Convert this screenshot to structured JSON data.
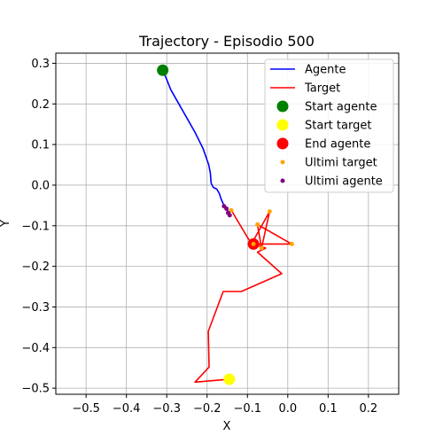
{
  "chart_data": {
    "type": "line",
    "title": "Trajectory - Episodio 500",
    "xlabel": "X",
    "ylabel": "Y",
    "xlim": [
      -0.575,
      0.275
    ],
    "ylim": [
      -0.515,
      0.325
    ],
    "xticks": [
      -0.5,
      -0.4,
      -0.3,
      -0.2,
      -0.1,
      0.0,
      0.1,
      0.2
    ],
    "xtick_labels": [
      "−0.5",
      "−0.4",
      "−0.3",
      "−0.2",
      "−0.1",
      "0.0",
      "0.1",
      "0.2"
    ],
    "yticks": [
      -0.5,
      -0.4,
      -0.3,
      -0.2,
      -0.1,
      0.0,
      0.1,
      0.2,
      0.3
    ],
    "ytick_labels": [
      "−0.5",
      "−0.4",
      "−0.3",
      "−0.2",
      "−0.1",
      "0.0",
      "0.1",
      "0.2",
      "0.3"
    ],
    "grid": true,
    "legend_position": "top-right",
    "series": [
      {
        "name": "Agente",
        "kind": "line",
        "color": "#0000ff",
        "x": [
          -0.31,
          -0.3,
          -0.29,
          -0.27,
          -0.25,
          -0.23,
          -0.21,
          -0.196,
          -0.192,
          -0.19,
          -0.185,
          -0.176,
          -0.17,
          -0.165,
          -0.158,
          -0.152,
          -0.148,
          -0.144
        ],
        "y": [
          0.283,
          0.26,
          0.235,
          0.2,
          0.165,
          0.13,
          0.09,
          0.05,
          0.03,
          0.005,
          -0.005,
          -0.01,
          -0.02,
          -0.035,
          -0.05,
          -0.058,
          -0.065,
          -0.072
        ]
      },
      {
        "name": "Target",
        "kind": "line",
        "color": "#ff0000",
        "x": [
          -0.145,
          -0.23,
          -0.195,
          -0.197,
          -0.16,
          -0.115,
          -0.015,
          -0.075,
          -0.055,
          -0.085,
          0.01,
          -0.075,
          -0.065,
          -0.045,
          -0.09,
          -0.14
        ],
        "y": [
          -0.478,
          -0.485,
          -0.448,
          -0.36,
          -0.262,
          -0.262,
          -0.218,
          -0.165,
          -0.155,
          -0.145,
          -0.145,
          -0.097,
          -0.155,
          -0.065,
          -0.145,
          -0.062
        ]
      },
      {
        "name": "Start agente",
        "kind": "marker",
        "color": "#008000",
        "x": [
          -0.31
        ],
        "y": [
          0.283
        ]
      },
      {
        "name": "Start target",
        "kind": "marker",
        "color": "#ffff00",
        "x": [
          -0.145
        ],
        "y": [
          -0.478
        ]
      },
      {
        "name": "End agente",
        "kind": "marker",
        "color": "#ff0000",
        "x": [
          -0.085
        ],
        "y": [
          -0.145
        ]
      },
      {
        "name": "Ultimi target",
        "kind": "scatter",
        "color": "#ffa500",
        "x": [
          -0.045,
          0.01,
          -0.075,
          -0.14,
          -0.085,
          -0.065
        ],
        "y": [
          -0.065,
          -0.145,
          -0.097,
          -0.062,
          -0.145,
          -0.155
        ]
      },
      {
        "name": "Ultimi agente",
        "kind": "scatter",
        "color": "#800080",
        "x": [
          -0.158,
          -0.152,
          -0.148,
          -0.144
        ],
        "y": [
          -0.052,
          -0.058,
          -0.068,
          -0.074
        ]
      }
    ]
  }
}
